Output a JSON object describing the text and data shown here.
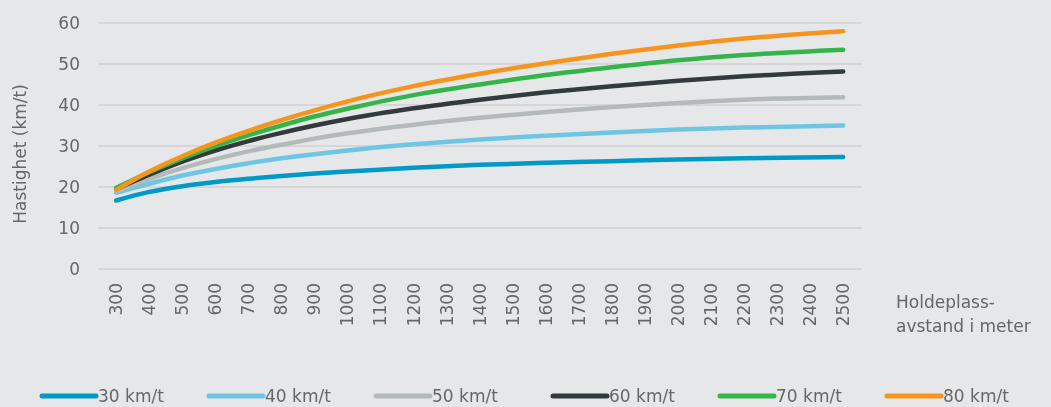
{
  "chart_data": {
    "type": "line",
    "ylabel": "Hastighet (km/t)",
    "xlabel": "Holdeplass-avstand i meter",
    "x": [
      300,
      400,
      500,
      600,
      700,
      800,
      900,
      1000,
      1200,
      1400,
      1600,
      1800,
      2000,
      2200,
      2500
    ],
    "xlim": [
      245,
      2557
    ],
    "xticks": [
      300,
      400,
      500,
      600,
      700,
      800,
      900,
      1000,
      1100,
      1200,
      1300,
      1400,
      1500,
      1600,
      1700,
      1800,
      1900,
      2000,
      2100,
      2200,
      2300,
      2400,
      2500
    ],
    "ylim": [
      0,
      60
    ],
    "yticks": [
      0,
      10,
      20,
      30,
      40,
      50,
      60
    ],
    "grid": "y",
    "legend": "bottom",
    "line_style": "solid",
    "marker": "none",
    "series": [
      {
        "name": "30 km/t",
        "color": "#0099c8",
        "values": [
          16.7,
          18.8,
          20.2,
          21.2,
          22.0,
          22.7,
          23.3,
          23.8,
          24.7,
          25.4,
          25.9,
          26.3,
          26.7,
          27.0,
          27.3
        ]
      },
      {
        "name": "40 km/t",
        "color": "#6ec6e4",
        "values": [
          18.6,
          20.8,
          22.8,
          24.4,
          25.8,
          27.0,
          28.0,
          28.9,
          30.4,
          31.6,
          32.5,
          33.3,
          34.0,
          34.5,
          35.0
        ]
      },
      {
        "name": "50 km/t",
        "color": "#b4b9b9",
        "values": [
          19.0,
          22.0,
          24.6,
          26.8,
          28.7,
          30.3,
          31.8,
          33.1,
          35.2,
          36.9,
          38.3,
          39.5,
          40.5,
          41.3,
          41.9
        ]
      },
      {
        "name": "60 km/t",
        "color": "#333a3d",
        "values": [
          19.5,
          23.0,
          26.2,
          28.9,
          31.2,
          33.2,
          35.0,
          36.6,
          39.2,
          41.3,
          43.1,
          44.6,
          45.9,
          47.0,
          48.2
        ]
      },
      {
        "name": "70 km/t",
        "color": "#35b44a",
        "values": [
          19.8,
          23.6,
          27.0,
          30.0,
          32.6,
          35.0,
          37.2,
          39.1,
          42.4,
          45.0,
          47.3,
          49.2,
          50.9,
          52.2,
          53.5
        ]
      },
      {
        "name": "80 km/t",
        "color": "#f7941d",
        "values": [
          19.3,
          23.8,
          27.5,
          30.8,
          33.7,
          36.3,
          38.7,
          40.9,
          44.6,
          47.6,
          50.2,
          52.5,
          54.5,
          56.2,
          58.0
        ]
      }
    ]
  }
}
